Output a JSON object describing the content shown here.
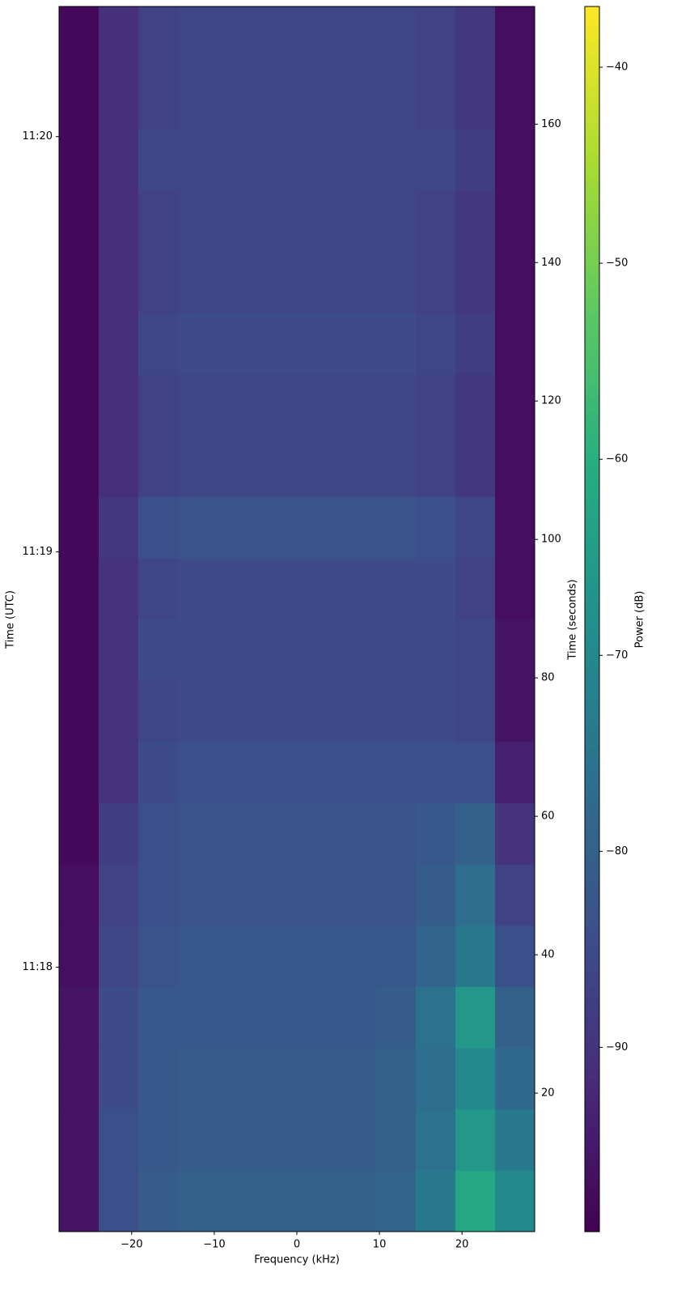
{
  "chart_data": {
    "type": "heatmap",
    "xlabel": "Frequency (kHz)",
    "ylabel": "Time (UTC)",
    "y2label": "Time (seconds)",
    "colorbar_label": "Power (dB)",
    "colormap": "viridis",
    "xlim": [
      -28.8,
      28.8
    ],
    "xticks": [
      {
        "value": -20,
        "label": "−20"
      },
      {
        "value": -10,
        "label": "−10"
      },
      0,
      10,
      20
    ],
    "ylim": [
      0,
      177
    ],
    "yticks": [
      {
        "value": 38.2,
        "label": "11:18"
      },
      {
        "value": 98.2,
        "label": "11:19"
      },
      {
        "value": 158.2,
        "label": "11:20"
      }
    ],
    "y2lim": [
      0,
      177
    ],
    "y2ticks": [
      20,
      40,
      60,
      80,
      100,
      120,
      140,
      160
    ],
    "clim": [
      -99.4,
      -36.9
    ],
    "cticks": [
      {
        "value": -40,
        "label": "−40"
      },
      {
        "value": -50,
        "label": "−50"
      },
      {
        "value": -60,
        "label": "−60"
      },
      {
        "value": -70,
        "label": "−70"
      },
      {
        "value": -80,
        "label": "−80"
      },
      {
        "value": -90,
        "label": "−90"
      }
    ],
    "xbins": [
      -28.8,
      -24,
      -19.2,
      -14.4,
      -9.6,
      -4.8,
      0,
      4.8,
      9.6,
      14.4,
      19.2,
      24,
      28.8
    ],
    "ybins": [
      0,
      8.85,
      17.7,
      26.55,
      35.4,
      44.25,
      53.1,
      61.95,
      70.8,
      79.65,
      88.5,
      97.35,
      106.2,
      115.05,
      123.9,
      132.75,
      141.6,
      150.45,
      159.3,
      168.15,
      177
    ],
    "z": [
      [
        -96,
        -84,
        -81,
        -80,
        -80,
        -80,
        -80,
        -80,
        -79,
        -74,
        -62,
        -70
      ],
      [
        -96,
        -84,
        -82,
        -81,
        -81,
        -81,
        -81,
        -81,
        -80,
        -76,
        -66,
        -74
      ],
      [
        -96,
        -85,
        -82,
        -81,
        -81,
        -81,
        -81,
        -81,
        -80,
        -77,
        -70,
        -78
      ],
      [
        -96,
        -85,
        -82,
        -82,
        -82,
        -82,
        -82,
        -82,
        -81,
        -76,
        -66,
        -80
      ],
      [
        -97,
        -86,
        -83,
        -82,
        -82,
        -82,
        -82,
        -82,
        -82,
        -79,
        -74,
        -84
      ],
      [
        -97,
        -87,
        -84,
        -83,
        -83,
        -83,
        -83,
        -83,
        -83,
        -81,
        -77,
        -87
      ],
      [
        -98,
        -88,
        -84,
        -83,
        -83,
        -83,
        -83,
        -83,
        -83,
        -82,
        -80,
        -90
      ],
      [
        -98,
        -90,
        -85,
        -84,
        -84,
        -84,
        -84,
        -84,
        -84,
        -84,
        -84,
        -94
      ],
      [
        -98,
        -90,
        -86,
        -85,
        -85,
        -85,
        -85,
        -85,
        -85,
        -85,
        -86,
        -96
      ],
      [
        -98,
        -90,
        -85,
        -85,
        -85,
        -85,
        -85,
        -85,
        -85,
        -85,
        -86,
        -96
      ],
      [
        -98,
        -90,
        -86,
        -85,
        -85,
        -85,
        -85,
        -85,
        -85,
        -85,
        -87,
        -97
      ],
      [
        -98,
        -89,
        -84,
        -83,
        -83,
        -83,
        -83,
        -83,
        -83,
        -84,
        -86,
        -97
      ],
      [
        -98,
        -91,
        -87,
        -86,
        -86,
        -86,
        -86,
        -86,
        -86,
        -87,
        -89,
        -97
      ],
      [
        -98,
        -91,
        -87,
        -86,
        -86,
        -86,
        -86,
        -86,
        -86,
        -87,
        -89,
        -97
      ],
      [
        -98,
        -91,
        -86,
        -85,
        -85,
        -85,
        -85,
        -85,
        -85,
        -86,
        -88,
        -97
      ],
      [
        -98,
        -91,
        -87,
        -86,
        -86,
        -86,
        -86,
        -86,
        -86,
        -87,
        -89,
        -97
      ],
      [
        -98,
        -91,
        -87,
        -86,
        -86,
        -86,
        -86,
        -86,
        -86,
        -87,
        -89,
        -97
      ],
      [
        -98,
        -91,
        -86,
        -86,
        -86,
        -86,
        -86,
        -86,
        -86,
        -86,
        -88,
        -97
      ],
      [
        -98,
        -91,
        -87,
        -86,
        -86,
        -86,
        -86,
        -86,
        -86,
        -87,
        -89,
        -97
      ],
      [
        -98,
        -91,
        -87,
        -86,
        -86,
        -86,
        -86,
        -86,
        -86,
        -87,
        -89,
        -97
      ]
    ]
  }
}
